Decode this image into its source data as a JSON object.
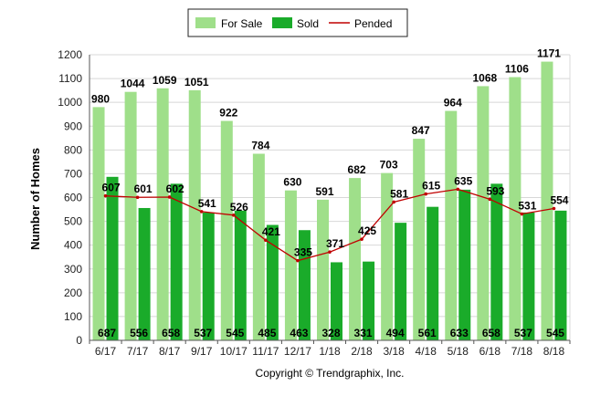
{
  "chart_data": {
    "type": "bar",
    "categories": [
      "6/17",
      "7/17",
      "8/17",
      "9/17",
      "10/17",
      "11/17",
      "12/17",
      "1/18",
      "2/18",
      "3/18",
      "4/18",
      "5/18",
      "6/18",
      "7/18",
      "8/18"
    ],
    "series": [
      {
        "name": "For Sale",
        "kind": "bar",
        "color": "#9fdf8a",
        "values": [
          980,
          1044,
          1059,
          1051,
          922,
          784,
          630,
          591,
          682,
          703,
          847,
          964,
          1068,
          1106,
          1171
        ]
      },
      {
        "name": "Sold",
        "kind": "bar",
        "color": "#1aab2a",
        "values": [
          687,
          556,
          658,
          537,
          545,
          485,
          463,
          328,
          331,
          494,
          561,
          633,
          658,
          537,
          545
        ]
      },
      {
        "name": "Pended",
        "kind": "line",
        "color": "#c00000",
        "values": [
          607,
          601,
          602,
          541,
          526,
          421,
          335,
          371,
          425,
          581,
          615,
          635,
          593,
          531,
          554
        ]
      }
    ],
    "ylabel": "Number of Homes",
    "xlabel": "",
    "ylim": [
      0,
      1200
    ],
    "yticks": [
      0,
      100,
      200,
      300,
      400,
      500,
      600,
      700,
      800,
      900,
      1000,
      1100,
      1200
    ],
    "grid": true,
    "legend_position": "top-center"
  },
  "copyright": "Copyright © Trendgraphix, Inc."
}
